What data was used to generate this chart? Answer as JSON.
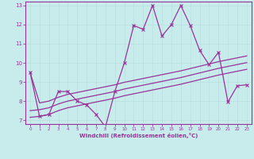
{
  "xlabel": "Windchill (Refroidissement éolien,°C)",
  "bg_color": "#c8ecec",
  "line_color": "#993399",
  "grid_color": "#b8dede",
  "xlim": [
    -0.5,
    23.5
  ],
  "ylim": [
    6.8,
    13.2
  ],
  "xticks": [
    0,
    1,
    2,
    3,
    4,
    5,
    6,
    7,
    8,
    9,
    10,
    11,
    12,
    13,
    14,
    15,
    16,
    17,
    18,
    19,
    20,
    21,
    22,
    23
  ],
  "yticks": [
    7,
    8,
    9,
    10,
    11,
    12,
    13
  ],
  "s1_x": [
    0,
    1,
    2,
    3,
    4,
    5,
    6,
    7,
    8,
    9,
    10,
    11,
    12,
    13,
    14,
    15,
    16,
    17,
    18,
    19,
    20,
    21,
    22,
    23
  ],
  "s1_y": [
    9.5,
    7.2,
    7.3,
    8.5,
    8.5,
    8.0,
    7.8,
    7.3,
    6.65,
    8.5,
    10.0,
    11.95,
    11.75,
    13.0,
    11.4,
    12.0,
    13.0,
    11.95,
    10.65,
    9.9,
    10.55,
    7.95,
    8.8,
    8.85
  ],
  "s2_x": [
    0,
    1,
    2,
    3,
    4,
    5,
    6,
    7,
    8,
    9,
    10,
    11,
    12,
    13,
    14,
    15,
    16,
    17,
    18,
    19,
    20,
    21,
    22,
    23
  ],
  "s2_y": [
    7.15,
    7.2,
    7.3,
    7.5,
    7.65,
    7.75,
    7.85,
    7.95,
    8.05,
    8.15,
    8.28,
    8.38,
    8.48,
    8.58,
    8.68,
    8.78,
    8.88,
    9.0,
    9.12,
    9.24,
    9.36,
    9.46,
    9.56,
    9.66
  ],
  "s3_x": [
    0,
    1,
    2,
    3,
    4,
    5,
    6,
    7,
    8,
    9,
    10,
    11,
    12,
    13,
    14,
    15,
    16,
    17,
    18,
    19,
    20,
    21,
    22,
    23
  ],
  "s3_y": [
    7.5,
    7.55,
    7.65,
    7.85,
    8.0,
    8.1,
    8.2,
    8.3,
    8.4,
    8.5,
    8.63,
    8.73,
    8.83,
    8.93,
    9.03,
    9.13,
    9.23,
    9.35,
    9.47,
    9.59,
    9.71,
    9.81,
    9.91,
    10.01
  ],
  "s4_x": [
    0,
    1,
    2,
    3,
    4,
    5,
    6,
    7,
    8,
    9,
    10,
    11,
    12,
    13,
    14,
    15,
    16,
    17,
    18,
    19,
    20,
    21,
    22,
    23
  ],
  "s4_y": [
    9.5,
    7.9,
    8.0,
    8.2,
    8.35,
    8.45,
    8.55,
    8.65,
    8.75,
    8.85,
    8.98,
    9.08,
    9.18,
    9.28,
    9.38,
    9.48,
    9.58,
    9.7,
    9.82,
    9.94,
    10.06,
    10.16,
    10.26,
    10.36
  ]
}
